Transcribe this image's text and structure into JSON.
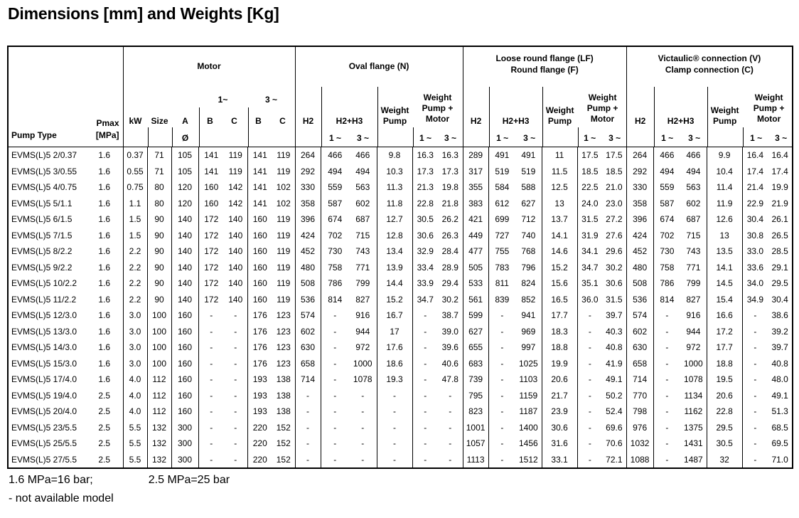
{
  "title": "Dimensions [mm] and Weights [Kg]",
  "table": {
    "header": {
      "pump_type": "Pump Type",
      "pmax_line1": "Pmax",
      "pmax_line2": "[MPa]",
      "motor": {
        "title": "Motor",
        "kw": "kW",
        "size": "Size",
        "a": "A",
        "b": "B",
        "c": "C",
        "phase1": "1~",
        "phase3": "3 ~",
        "diameter": "Ø"
      },
      "oval": {
        "title_line1": "Oval flange (N)",
        "title_line2": ""
      },
      "loose": {
        "title_line1": "Loose round flange (LF)",
        "title_line2": "Round flange (F)"
      },
      "victaulic": {
        "title_line1": "Victaulic® connection (V)",
        "title_line2": "Clamp connection (C)"
      },
      "flange_labels": {
        "h2": "H2",
        "h2h3": "H2+H3",
        "weight": "Weight",
        "pump": "Pump",
        "pump_plus": "Pump +",
        "motor": "Motor",
        "p1": "1 ~",
        "p3": "3 ~"
      }
    },
    "rows": [
      {
        "pump": "EVMS(L)5 2/0.37",
        "pmax": "1.6",
        "motor": [
          "0.37",
          "71",
          "105",
          "141",
          "119",
          "141",
          "119"
        ],
        "oval": [
          "264",
          "466",
          "466",
          "9.8",
          "16.3",
          "16.3"
        ],
        "loose": [
          "289",
          "491",
          "491",
          "11",
          "17.5",
          "17.5"
        ],
        "victaulic": [
          "264",
          "466",
          "466",
          "9.9",
          "16.4",
          "16.4"
        ]
      },
      {
        "pump": "EVMS(L)5 3/0.55",
        "pmax": "1.6",
        "motor": [
          "0.55",
          "71",
          "105",
          "141",
          "119",
          "141",
          "119"
        ],
        "oval": [
          "292",
          "494",
          "494",
          "10.3",
          "17.3",
          "17.3"
        ],
        "loose": [
          "317",
          "519",
          "519",
          "11.5",
          "18.5",
          "18.5"
        ],
        "victaulic": [
          "292",
          "494",
          "494",
          "10.4",
          "17.4",
          "17.4"
        ]
      },
      {
        "pump": "EVMS(L)5 4/0.75",
        "pmax": "1.6",
        "motor": [
          "0.75",
          "80",
          "120",
          "160",
          "142",
          "141",
          "102"
        ],
        "oval": [
          "330",
          "559",
          "563",
          "11.3",
          "21.3",
          "19.8"
        ],
        "loose": [
          "355",
          "584",
          "588",
          "12.5",
          "22.5",
          "21.0"
        ],
        "victaulic": [
          "330",
          "559",
          "563",
          "11.4",
          "21.4",
          "19.9"
        ]
      },
      {
        "pump": "EVMS(L)5 5/1.1",
        "pmax": "1.6",
        "motor": [
          "1.1",
          "80",
          "120",
          "160",
          "142",
          "141",
          "102"
        ],
        "oval": [
          "358",
          "587",
          "602",
          "11.8",
          "22.8",
          "21.8"
        ],
        "loose": [
          "383",
          "612",
          "627",
          "13",
          "24.0",
          "23.0"
        ],
        "victaulic": [
          "358",
          "587",
          "602",
          "11.9",
          "22.9",
          "21.9"
        ]
      },
      {
        "pump": "EVMS(L)5 6/1.5",
        "pmax": "1.6",
        "motor": [
          "1.5",
          "90",
          "140",
          "172",
          "140",
          "160",
          "119"
        ],
        "oval": [
          "396",
          "674",
          "687",
          "12.7",
          "30.5",
          "26.2"
        ],
        "loose": [
          "421",
          "699",
          "712",
          "13.7",
          "31.5",
          "27.2"
        ],
        "victaulic": [
          "396",
          "674",
          "687",
          "12.6",
          "30.4",
          "26.1"
        ]
      },
      {
        "pump": "EVMS(L)5 7/1.5",
        "pmax": "1.6",
        "motor": [
          "1.5",
          "90",
          "140",
          "172",
          "140",
          "160",
          "119"
        ],
        "oval": [
          "424",
          "702",
          "715",
          "12.8",
          "30.6",
          "26.3"
        ],
        "loose": [
          "449",
          "727",
          "740",
          "14.1",
          "31.9",
          "27.6"
        ],
        "victaulic": [
          "424",
          "702",
          "715",
          "13",
          "30.8",
          "26.5"
        ]
      },
      {
        "pump": "EVMS(L)5 8/2.2",
        "pmax": "1.6",
        "motor": [
          "2.2",
          "90",
          "140",
          "172",
          "140",
          "160",
          "119"
        ],
        "oval": [
          "452",
          "730",
          "743",
          "13.4",
          "32.9",
          "28.4"
        ],
        "loose": [
          "477",
          "755",
          "768",
          "14.6",
          "34.1",
          "29.6"
        ],
        "victaulic": [
          "452",
          "730",
          "743",
          "13.5",
          "33.0",
          "28.5"
        ]
      },
      {
        "pump": "EVMS(L)5 9/2.2",
        "pmax": "1.6",
        "motor": [
          "2.2",
          "90",
          "140",
          "172",
          "140",
          "160",
          "119"
        ],
        "oval": [
          "480",
          "758",
          "771",
          "13.9",
          "33.4",
          "28.9"
        ],
        "loose": [
          "505",
          "783",
          "796",
          "15.2",
          "34.7",
          "30.2"
        ],
        "victaulic": [
          "480",
          "758",
          "771",
          "14.1",
          "33.6",
          "29.1"
        ]
      },
      {
        "pump": "EVMS(L)5 10/2.2",
        "pmax": "1.6",
        "motor": [
          "2.2",
          "90",
          "140",
          "172",
          "140",
          "160",
          "119"
        ],
        "oval": [
          "508",
          "786",
          "799",
          "14.4",
          "33.9",
          "29.4"
        ],
        "loose": [
          "533",
          "811",
          "824",
          "15.6",
          "35.1",
          "30.6"
        ],
        "victaulic": [
          "508",
          "786",
          "799",
          "14.5",
          "34.0",
          "29.5"
        ]
      },
      {
        "pump": "EVMS(L)5 11/2.2",
        "pmax": "1.6",
        "motor": [
          "2.2",
          "90",
          "140",
          "172",
          "140",
          "160",
          "119"
        ],
        "oval": [
          "536",
          "814",
          "827",
          "15.2",
          "34.7",
          "30.2"
        ],
        "loose": [
          "561",
          "839",
          "852",
          "16.5",
          "36.0",
          "31.5"
        ],
        "victaulic": [
          "536",
          "814",
          "827",
          "15.4",
          "34.9",
          "30.4"
        ]
      },
      {
        "pump": "EVMS(L)5 12/3.0",
        "pmax": "1.6",
        "motor": [
          "3.0",
          "100",
          "160",
          "-",
          "-",
          "176",
          "123"
        ],
        "oval": [
          "574",
          "-",
          "916",
          "16.7",
          "-",
          "38.7"
        ],
        "loose": [
          "599",
          "-",
          "941",
          "17.7",
          "-",
          "39.7"
        ],
        "victaulic": [
          "574",
          "-",
          "916",
          "16.6",
          "-",
          "38.6"
        ]
      },
      {
        "pump": "EVMS(L)5 13/3.0",
        "pmax": "1.6",
        "motor": [
          "3.0",
          "100",
          "160",
          "-",
          "-",
          "176",
          "123"
        ],
        "oval": [
          "602",
          "-",
          "944",
          "17",
          "-",
          "39.0"
        ],
        "loose": [
          "627",
          "-",
          "969",
          "18.3",
          "-",
          "40.3"
        ],
        "victaulic": [
          "602",
          "-",
          "944",
          "17.2",
          "-",
          "39.2"
        ]
      },
      {
        "pump": "EVMS(L)5 14/3.0",
        "pmax": "1.6",
        "motor": [
          "3.0",
          "100",
          "160",
          "-",
          "-",
          "176",
          "123"
        ],
        "oval": [
          "630",
          "-",
          "972",
          "17.6",
          "-",
          "39.6"
        ],
        "loose": [
          "655",
          "-",
          "997",
          "18.8",
          "-",
          "40.8"
        ],
        "victaulic": [
          "630",
          "-",
          "972",
          "17.7",
          "-",
          "39.7"
        ]
      },
      {
        "pump": "EVMS(L)5 15/3.0",
        "pmax": "1.6",
        "motor": [
          "3.0",
          "100",
          "160",
          "-",
          "-",
          "176",
          "123"
        ],
        "oval": [
          "658",
          "-",
          "1000",
          "18.6",
          "-",
          "40.6"
        ],
        "loose": [
          "683",
          "-",
          "1025",
          "19.9",
          "-",
          "41.9"
        ],
        "victaulic": [
          "658",
          "-",
          "1000",
          "18.8",
          "-",
          "40.8"
        ]
      },
      {
        "pump": "EVMS(L)5 17/4.0",
        "pmax": "1.6",
        "motor": [
          "4.0",
          "112",
          "160",
          "-",
          "-",
          "193",
          "138"
        ],
        "oval": [
          "714",
          "-",
          "1078",
          "19.3",
          "-",
          "47.8"
        ],
        "loose": [
          "739",
          "-",
          "1103",
          "20.6",
          "-",
          "49.1"
        ],
        "victaulic": [
          "714",
          "-",
          "1078",
          "19.5",
          "-",
          "48.0"
        ]
      },
      {
        "pump": "EVMS(L)5 19/4.0",
        "pmax": "2.5",
        "motor": [
          "4.0",
          "112",
          "160",
          "-",
          "-",
          "193",
          "138"
        ],
        "oval": [
          "-",
          "-",
          "-",
          "-",
          "-",
          "-"
        ],
        "loose": [
          "795",
          "-",
          "1159",
          "21.7",
          "-",
          "50.2"
        ],
        "victaulic": [
          "770",
          "-",
          "1134",
          "20.6",
          "-",
          "49.1"
        ]
      },
      {
        "pump": "EVMS(L)5 20/4.0",
        "pmax": "2.5",
        "motor": [
          "4.0",
          "112",
          "160",
          "-",
          "-",
          "193",
          "138"
        ],
        "oval": [
          "-",
          "-",
          "-",
          "-",
          "-",
          "-"
        ],
        "loose": [
          "823",
          "-",
          "1187",
          "23.9",
          "-",
          "52.4"
        ],
        "victaulic": [
          "798",
          "-",
          "1162",
          "22.8",
          "-",
          "51.3"
        ]
      },
      {
        "pump": "EVMS(L)5 23/5.5",
        "pmax": "2.5",
        "motor": [
          "5.5",
          "132",
          "300",
          "-",
          "-",
          "220",
          "152"
        ],
        "oval": [
          "-",
          "-",
          "-",
          "-",
          "-",
          "-"
        ],
        "loose": [
          "1001",
          "-",
          "1400",
          "30.6",
          "-",
          "69.6"
        ],
        "victaulic": [
          "976",
          "-",
          "1375",
          "29.5",
          "-",
          "68.5"
        ]
      },
      {
        "pump": "EVMS(L)5 25/5.5",
        "pmax": "2.5",
        "motor": [
          "5.5",
          "132",
          "300",
          "-",
          "-",
          "220",
          "152"
        ],
        "oval": [
          "-",
          "-",
          "-",
          "-",
          "-",
          "-"
        ],
        "loose": [
          "1057",
          "-",
          "1456",
          "31.6",
          "-",
          "70.6"
        ],
        "victaulic": [
          "1032",
          "-",
          "1431",
          "30.5",
          "-",
          "69.5"
        ]
      },
      {
        "pump": "EVMS(L)5 27/5.5",
        "pmax": "2.5",
        "motor": [
          "5.5",
          "132",
          "300",
          "-",
          "-",
          "220",
          "152"
        ],
        "oval": [
          "-",
          "-",
          "-",
          "-",
          "-",
          "-"
        ],
        "loose": [
          "1113",
          "-",
          "1512",
          "33.1",
          "-",
          "72.1"
        ],
        "victaulic": [
          "1088",
          "-",
          "1487",
          "32",
          "-",
          "71.0"
        ]
      }
    ]
  },
  "footer": {
    "note1_left": "1.6 MPa=16 bar;",
    "note1_right": "2.5 MPa=25 bar",
    "note2": "- not available model"
  }
}
